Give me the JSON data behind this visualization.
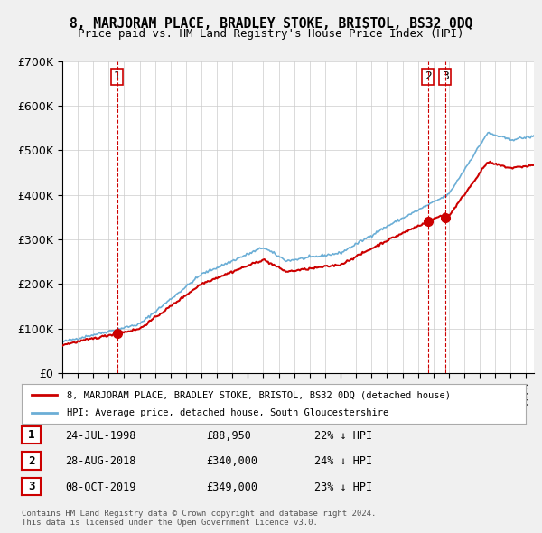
{
  "title": "8, MARJORAM PLACE, BRADLEY STOKE, BRISTOL, BS32 0DQ",
  "subtitle": "Price paid vs. HM Land Registry's House Price Index (HPI)",
  "hpi_color": "#6baed6",
  "price_color": "#cc0000",
  "vline_color": "#cc0000",
  "marker_color": "#cc0000",
  "background_color": "#f0f0f0",
  "plot_bg_color": "#ffffff",
  "ylim": [
    0,
    700000
  ],
  "yticks": [
    0,
    100000,
    200000,
    300000,
    400000,
    500000,
    600000,
    700000
  ],
  "ytick_labels": [
    "£0",
    "£100K",
    "£200K",
    "£300K",
    "£400K",
    "£500K",
    "£600K",
    "£700K"
  ],
  "xlim_start": 1995.0,
  "xlim_end": 2025.5,
  "transactions": [
    {
      "num": 1,
      "date_x": 1998.56,
      "price": 88950,
      "label": "1"
    },
    {
      "num": 2,
      "date_x": 2018.66,
      "price": 340000,
      "label": "2"
    },
    {
      "num": 3,
      "date_x": 2019.77,
      "price": 349000,
      "label": "3"
    }
  ],
  "legend_entries": [
    "8, MARJORAM PLACE, BRADLEY STOKE, BRISTOL, BS32 0DQ (detached house)",
    "HPI: Average price, detached house, South Gloucestershire"
  ],
  "table_rows": [
    {
      "num": "1",
      "date": "24-JUL-1998",
      "price": "£88,950",
      "hpi": "22% ↓ HPI"
    },
    {
      "num": "2",
      "date": "28-AUG-2018",
      "price": "£340,000",
      "hpi": "24% ↓ HPI"
    },
    {
      "num": "3",
      "date": "08-OCT-2019",
      "price": "£349,000",
      "hpi": "23% ↓ HPI"
    }
  ],
  "footer": "Contains HM Land Registry data © Crown copyright and database right 2024.\nThis data is licensed under the Open Government Licence v3.0."
}
